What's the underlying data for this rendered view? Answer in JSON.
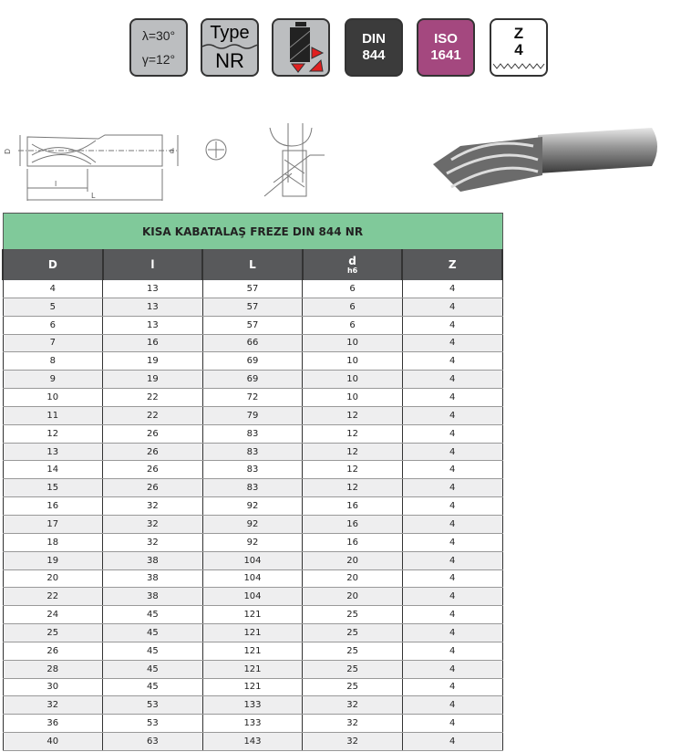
{
  "icons": {
    "angles": {
      "line1": "λ=30°",
      "line2": "γ=12°"
    },
    "type": {
      "line1": "Type",
      "line2": "NR"
    },
    "din": {
      "line1": "DIN",
      "line2": "844"
    },
    "iso": {
      "line1": "ISO",
      "line2": "1641"
    },
    "teeth": {
      "line1": "Z",
      "line2": "4"
    }
  },
  "drawing_labels": {
    "D": "D",
    "l": "l",
    "L": "L",
    "d": "d"
  },
  "table": {
    "title": "KISA KABATALAŞ FREZE DIN 844 NR",
    "headers": [
      "D",
      "l",
      "L",
      "d",
      "Z"
    ],
    "d_sub": "h6",
    "rows": [
      [
        "4",
        "13",
        "57",
        "6",
        "4"
      ],
      [
        "5",
        "13",
        "57",
        "6",
        "4"
      ],
      [
        "6",
        "13",
        "57",
        "6",
        "4"
      ],
      [
        "7",
        "16",
        "66",
        "10",
        "4"
      ],
      [
        "8",
        "19",
        "69",
        "10",
        "4"
      ],
      [
        "9",
        "19",
        "69",
        "10",
        "4"
      ],
      [
        "10",
        "22",
        "72",
        "10",
        "4"
      ],
      [
        "11",
        "22",
        "79",
        "12",
        "4"
      ],
      [
        "12",
        "26",
        "83",
        "12",
        "4"
      ],
      [
        "13",
        "26",
        "83",
        "12",
        "4"
      ],
      [
        "14",
        "26",
        "83",
        "12",
        "4"
      ],
      [
        "15",
        "26",
        "83",
        "12",
        "4"
      ],
      [
        "16",
        "32",
        "92",
        "16",
        "4"
      ],
      [
        "17",
        "32",
        "92",
        "16",
        "4"
      ],
      [
        "18",
        "32",
        "92",
        "16",
        "4"
      ],
      [
        "19",
        "38",
        "104",
        "20",
        "4"
      ],
      [
        "20",
        "38",
        "104",
        "20",
        "4"
      ],
      [
        "22",
        "38",
        "104",
        "20",
        "4"
      ],
      [
        "24",
        "45",
        "121",
        "25",
        "4"
      ],
      [
        "25",
        "45",
        "121",
        "25",
        "4"
      ],
      [
        "26",
        "45",
        "121",
        "25",
        "4"
      ],
      [
        "28",
        "45",
        "121",
        "25",
        "4"
      ],
      [
        "30",
        "45",
        "121",
        "25",
        "4"
      ],
      [
        "32",
        "53",
        "133",
        "32",
        "4"
      ],
      [
        "36",
        "53",
        "133",
        "32",
        "4"
      ],
      [
        "40",
        "63",
        "143",
        "32",
        "4"
      ]
    ]
  }
}
